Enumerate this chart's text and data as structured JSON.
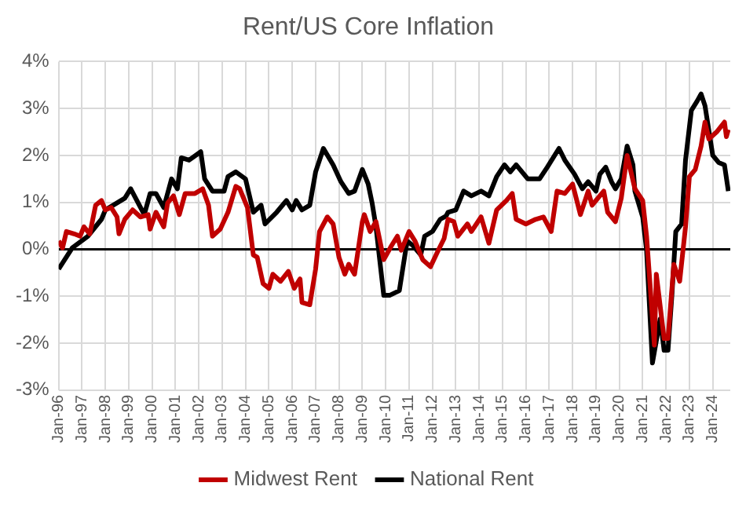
{
  "chart_data": {
    "type": "line",
    "title": "Rent/US Core Inflation",
    "series": [
      {
        "name": "Midwest Rent",
        "color": "#c00000",
        "x": [
          "1996-01",
          "1996-03",
          "1996-05",
          "1996-09",
          "1996-12",
          "1997-02",
          "1997-05",
          "1997-08",
          "1997-11",
          "1998-01",
          "1998-04",
          "1998-07",
          "1998-08",
          "1998-11",
          "1999-03",
          "1999-07",
          "1999-11",
          "1999-12",
          "2000-03",
          "2000-07",
          "2000-09",
          "2000-12",
          "2001-03",
          "2001-06",
          "2001-11",
          "2002-03",
          "2002-06",
          "2002-08",
          "2002-12",
          "2003-04",
          "2003-08",
          "2003-10",
          "2004-02",
          "2004-05",
          "2004-07",
          "2004-10",
          "2005-01",
          "2005-03",
          "2005-07",
          "2005-11",
          "2006-02",
          "2006-05",
          "2006-06",
          "2006-10",
          "2007-01",
          "2007-03",
          "2007-07",
          "2007-10",
          "2008-01",
          "2008-04",
          "2008-06",
          "2008-09",
          "2009-01",
          "2009-02",
          "2009-05",
          "2009-08",
          "2009-12",
          "2010-04",
          "2010-07",
          "2010-09",
          "2011-01",
          "2011-04",
          "2011-08",
          "2011-12",
          "2012-04",
          "2012-07",
          "2012-09",
          "2012-12",
          "2013-02",
          "2013-07",
          "2013-09",
          "2014-02",
          "2014-06",
          "2014-10",
          "2015-03",
          "2015-06",
          "2015-08",
          "2016-01",
          "2016-06",
          "2016-10",
          "2017-02",
          "2017-05",
          "2017-09",
          "2018-01",
          "2018-05",
          "2018-09",
          "2018-11",
          "2019-05",
          "2019-07",
          "2019-11",
          "2020-02",
          "2020-05",
          "2020-09",
          "2021-01",
          "2021-03",
          "2021-07",
          "2021-08",
          "2021-12",
          "2022-02",
          "2022-05",
          "2022-08",
          "2022-11",
          "2023-01",
          "2023-04",
          "2023-07",
          "2023-09",
          "2023-11",
          "2024-03",
          "2024-07",
          "2024-08",
          "2024-09"
        ],
        "values": [
          0.18,
          0.03,
          0.38,
          0.33,
          0.28,
          0.48,
          0.33,
          0.94,
          1.04,
          0.84,
          0.89,
          0.69,
          0.33,
          0.64,
          0.84,
          0.69,
          0.74,
          0.43,
          0.79,
          0.48,
          0.99,
          1.14,
          0.74,
          1.19,
          1.19,
          1.29,
          0.94,
          0.28,
          0.43,
          0.79,
          1.34,
          1.29,
          0.89,
          -0.12,
          -0.17,
          -0.73,
          -0.83,
          -0.53,
          -0.68,
          -0.47,
          -0.83,
          -0.63,
          -1.13,
          -1.18,
          -0.42,
          0.38,
          0.69,
          0.54,
          -0.17,
          -0.53,
          -0.32,
          -0.53,
          0.59,
          0.74,
          0.38,
          0.59,
          -0.22,
          0.08,
          0.28,
          -0.02,
          0.38,
          0.18,
          -0.22,
          -0.37,
          -0.02,
          0.23,
          0.64,
          0.59,
          0.28,
          0.54,
          0.38,
          0.69,
          0.13,
          0.84,
          1.04,
          1.19,
          0.64,
          0.54,
          0.64,
          0.69,
          0.38,
          1.24,
          1.19,
          1.39,
          0.74,
          1.24,
          0.94,
          1.24,
          0.79,
          0.59,
          1.09,
          2.0,
          1.29,
          1.04,
          0.28,
          -2.04,
          -0.53,
          -1.9,
          -1.9,
          -0.32,
          -0.68,
          0.48,
          1.55,
          1.7,
          2.2,
          2.71,
          2.35,
          2.5,
          2.71,
          2.4,
          2.55
        ]
      },
      {
        "name": "National Rent",
        "color": "#000000",
        "x": [
          "1996-01",
          "1996-08",
          "1997-04",
          "1997-11",
          "1998-01",
          "1998-07",
          "1998-11",
          "1999-02",
          "1999-09",
          "1999-12",
          "2000-03",
          "2000-07",
          "2000-11",
          "2001-02",
          "2001-04",
          "2001-08",
          "2002-02",
          "2002-04",
          "2002-08",
          "2003-02",
          "2003-04",
          "2003-08",
          "2004-01",
          "2004-05",
          "2004-09",
          "2004-11",
          "2005-05",
          "2005-10",
          "2006-01",
          "2006-03",
          "2006-06",
          "2006-10",
          "2007-01",
          "2007-05",
          "2007-10",
          "2008-02",
          "2008-06",
          "2008-09",
          "2009-01",
          "2009-04",
          "2009-06",
          "2009-08",
          "2009-12",
          "2010-03",
          "2010-08",
          "2010-12",
          "2011-03",
          "2011-07",
          "2011-09",
          "2012-01",
          "2012-05",
          "2012-08",
          "2012-09",
          "2013-01",
          "2013-05",
          "2013-09",
          "2014-02",
          "2014-06",
          "2014-10",
          "2015-02",
          "2015-05",
          "2015-08",
          "2016-02",
          "2016-08",
          "2016-12",
          "2017-06",
          "2017-09",
          "2018-02",
          "2018-06",
          "2018-09",
          "2019-01",
          "2019-03",
          "2019-06",
          "2019-09",
          "2019-11",
          "2020-02",
          "2020-05",
          "2020-08",
          "2020-09",
          "2021-01",
          "2021-03",
          "2021-06",
          "2021-10",
          "2021-12",
          "2022-02",
          "2022-04",
          "2022-06",
          "2022-09",
          "2022-11",
          "2023-02",
          "2023-05",
          "2023-07",
          "2023-09",
          "2024-01",
          "2024-04",
          "2024-07",
          "2024-09"
        ],
        "values": [
          -0.42,
          0.03,
          0.28,
          0.64,
          0.84,
          0.99,
          1.09,
          1.29,
          0.74,
          1.19,
          1.19,
          0.89,
          1.5,
          1.29,
          1.95,
          1.9,
          2.08,
          1.5,
          1.24,
          1.24,
          1.55,
          1.65,
          1.5,
          0.79,
          0.94,
          0.54,
          0.79,
          1.04,
          0.84,
          1.04,
          0.84,
          0.94,
          1.65,
          2.15,
          1.8,
          1.44,
          1.19,
          1.24,
          1.7,
          1.39,
          0.99,
          0.48,
          -0.98,
          -0.98,
          -0.88,
          0.18,
          0.08,
          -0.12,
          0.28,
          0.38,
          0.64,
          0.71,
          0.79,
          0.84,
          1.24,
          1.14,
          1.24,
          1.14,
          1.55,
          1.8,
          1.65,
          1.8,
          1.5,
          1.5,
          1.75,
          2.15,
          1.9,
          1.6,
          1.29,
          1.44,
          1.24,
          1.6,
          1.75,
          1.44,
          1.29,
          1.5,
          2.2,
          1.8,
          1.24,
          0.69,
          -0.02,
          -2.42,
          -1.48,
          -2.15,
          -2.15,
          -0.98,
          0.38,
          0.54,
          1.9,
          2.96,
          3.16,
          3.31,
          3.06,
          2.0,
          1.85,
          1.8,
          1.24
        ]
      }
    ],
    "xlim": [
      "1996-01",
      "2024-10"
    ],
    "xticks": [
      {
        "value": "1996-01",
        "label": "Jan-96"
      },
      {
        "value": "1997-01",
        "label": "Jan-97"
      },
      {
        "value": "1998-01",
        "label": "Jan-98"
      },
      {
        "value": "1999-01",
        "label": "Jan-99"
      },
      {
        "value": "2000-01",
        "label": "Jan-00"
      },
      {
        "value": "2001-01",
        "label": "Jan-01"
      },
      {
        "value": "2002-01",
        "label": "Jan-02"
      },
      {
        "value": "2003-01",
        "label": "Jan-03"
      },
      {
        "value": "2004-01",
        "label": "Jan-04"
      },
      {
        "value": "2005-01",
        "label": "Jan-05"
      },
      {
        "value": "2006-01",
        "label": "Jan-06"
      },
      {
        "value": "2007-01",
        "label": "Jan-07"
      },
      {
        "value": "2008-01",
        "label": "Jan-08"
      },
      {
        "value": "2009-01",
        "label": "Jan-09"
      },
      {
        "value": "2010-01",
        "label": "Jan-10"
      },
      {
        "value": "2011-01",
        "label": "Jan-11"
      },
      {
        "value": "2012-01",
        "label": "Jan-12"
      },
      {
        "value": "2013-01",
        "label": "Jan-13"
      },
      {
        "value": "2014-01",
        "label": "Jan-14"
      },
      {
        "value": "2015-01",
        "label": "Jan-15"
      },
      {
        "value": "2016-01",
        "label": "Jan-16"
      },
      {
        "value": "2017-01",
        "label": "Jan-17"
      },
      {
        "value": "2018-01",
        "label": "Jan-18"
      },
      {
        "value": "2019-01",
        "label": "Jan-19"
      },
      {
        "value": "2020-01",
        "label": "Jan-20"
      },
      {
        "value": "2021-01",
        "label": "Jan-21"
      },
      {
        "value": "2022-01",
        "label": "Jan-22"
      },
      {
        "value": "2023-01",
        "label": "Jan-23"
      },
      {
        "value": "2024-01",
        "label": "Jan-24"
      }
    ],
    "ylim": [
      -3,
      4
    ],
    "yticks": [
      {
        "value": -3,
        "label": "-3%"
      },
      {
        "value": -2,
        "label": "-2%"
      },
      {
        "value": -1,
        "label": "-1%"
      },
      {
        "value": 0,
        "label": "0%"
      },
      {
        "value": 1,
        "label": "1%"
      },
      {
        "value": 2,
        "label": "2%"
      },
      {
        "value": 3,
        "label": "3%"
      },
      {
        "value": 4,
        "label": "4%"
      }
    ],
    "grid": true,
    "legend": "bottom",
    "marker": "none",
    "line_style": "solid"
  }
}
